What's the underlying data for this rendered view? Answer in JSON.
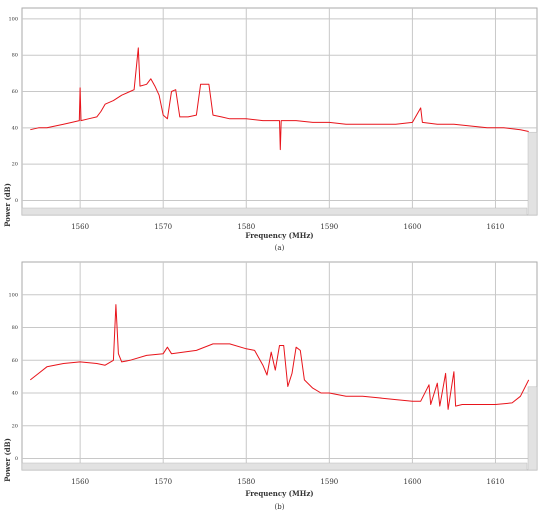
{
  "chart_data": [
    {
      "type": "line",
      "caption": "(a)",
      "xlabel": "Frequency (MHz)",
      "ylabel": "Power (dB)",
      "color": "#e8141b",
      "grid": true,
      "xlim": [
        1553,
        1615
      ],
      "xticks": [
        1560,
        1570,
        1580,
        1590,
        1600,
        1610
      ],
      "ylim": [
        -8,
        106
      ],
      "yticks": [
        0,
        20,
        40,
        60,
        80,
        100
      ],
      "x": [
        1554,
        1555,
        1556,
        1557,
        1558,
        1559,
        1559.9,
        1560,
        1560.1,
        1561,
        1562,
        1562.5,
        1563,
        1564,
        1565,
        1566,
        1566.5,
        1567,
        1567.2,
        1568,
        1568.5,
        1569,
        1569.5,
        1570,
        1570.5,
        1571,
        1571.5,
        1572,
        1573,
        1574,
        1574.5,
        1575,
        1575.5,
        1576,
        1577,
        1578,
        1580,
        1582,
        1584,
        1584.1,
        1584.2,
        1586,
        1588,
        1590,
        1592,
        1594,
        1596,
        1598,
        1600,
        1601,
        1601.2,
        1603,
        1605,
        1607,
        1609,
        1611,
        1613,
        1614
      ],
      "values": [
        39,
        40,
        40,
        41,
        42,
        43,
        44,
        62,
        44,
        45,
        46,
        49,
        53,
        55,
        58,
        60,
        61,
        84,
        63,
        64,
        67,
        63,
        58,
        47,
        45,
        60,
        61,
        46,
        46,
        47,
        64,
        64,
        64,
        47,
        46,
        45,
        45,
        44,
        44,
        28,
        44,
        44,
        43,
        43,
        42,
        42,
        42,
        42,
        43,
        51,
        43,
        42,
        42,
        41,
        40,
        40,
        39,
        38
      ]
    },
    {
      "type": "line",
      "caption": "(b)",
      "xlabel": "Frequency (MHz)",
      "ylabel": "Power (dB)",
      "color": "#e8141b",
      "grid": true,
      "xlim": [
        1553,
        1615
      ],
      "xticks": [
        1560,
        1570,
        1580,
        1590,
        1600,
        1610
      ],
      "ylim": [
        -7,
        120
      ],
      "yticks": [
        0,
        20,
        40,
        60,
        80,
        100
      ],
      "x": [
        1554,
        1555,
        1556,
        1558,
        1560,
        1562,
        1563,
        1564,
        1564.3,
        1564.6,
        1565,
        1566,
        1568,
        1570,
        1570.5,
        1571,
        1574,
        1576,
        1578,
        1580,
        1581,
        1582,
        1582.5,
        1583,
        1583.5,
        1584,
        1584.5,
        1585,
        1585.5,
        1586,
        1586.5,
        1587,
        1588,
        1589,
        1590,
        1592,
        1594,
        1596,
        1598,
        1600,
        1601,
        1602,
        1602.2,
        1603,
        1603.3,
        1604,
        1604.3,
        1605,
        1605.2,
        1606,
        1608,
        1610,
        1612,
        1613,
        1614
      ],
      "values": [
        48,
        52,
        56,
        58,
        59,
        58,
        57,
        60,
        94,
        64,
        59,
        60,
        63,
        64,
        68,
        64,
        66,
        70,
        70,
        67,
        66,
        57,
        51,
        65,
        54,
        69,
        69,
        44,
        52,
        68,
        66,
        48,
        43,
        40,
        40,
        38,
        38,
        37,
        36,
        35,
        35,
        45,
        33,
        46,
        32,
        52,
        30,
        53,
        32,
        33,
        33,
        33,
        34,
        38,
        48
      ]
    }
  ]
}
